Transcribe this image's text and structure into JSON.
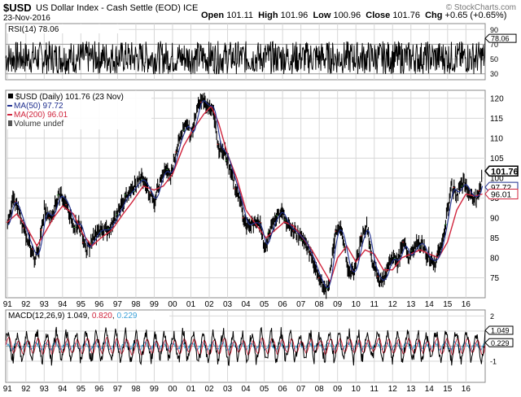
{
  "header": {
    "symbol": "$USD",
    "description": "US Dollar Index - Cash Settle (EOD) ICE",
    "date": "23-Nov-2016",
    "brand": "© StockCharts.com",
    "open_label": "Open",
    "open": "101.11",
    "high_label": "High",
    "high": "101.96",
    "low_label": "Low",
    "low": "100.96",
    "close_label": "Close",
    "close": "101.76",
    "chg_label": "Chg",
    "chg": "+0.65 (+0.65%)"
  },
  "colors": {
    "price": "#000000",
    "ma50": "#1f2f8f",
    "ma200": "#d0243c",
    "macd": "#000000",
    "signal": "#d0243c",
    "histogram": "#3aa0d8",
    "grid": "#d7d7d7",
    "border": "#888888",
    "up_arrow": "#2f8f2f",
    "down_arrow": "#cc2222"
  },
  "chart_data": [
    {
      "type": "line",
      "panel": "RSI",
      "legend": "RSI(14) 78.06",
      "last_value_label": "78.06",
      "ylim": [
        22,
        98
      ],
      "yticks": [
        {
          "value": 90,
          "label": "90"
        },
        {
          "value": 70,
          "label": "70"
        },
        {
          "value": 50,
          "label": "50"
        },
        {
          "value": 30,
          "label": "30"
        }
      ],
      "reference_lines": [
        70,
        30
      ],
      "last_value": 78.06,
      "oscillation_amplitude": 14
    },
    {
      "type": "line",
      "panel": "Price",
      "legend": {
        "title": "$USD (Daily) 101.76 (23 Nov)",
        "ma50": "MA(50) 97.72",
        "ma200": "MA(200) 96.01",
        "volume": "Volume undef"
      },
      "ylim": [
        70,
        122
      ],
      "yticks": [
        {
          "value": 120,
          "label": "120"
        },
        {
          "value": 115,
          "label": "115"
        },
        {
          "value": 110,
          "label": "110"
        },
        {
          "value": 105,
          "label": "105"
        },
        {
          "value": 100,
          "label": "100"
        },
        {
          "value": 95,
          "label": "95"
        },
        {
          "value": 90,
          "label": "90"
        },
        {
          "value": 85,
          "label": "85"
        },
        {
          "value": 80,
          "label": "80"
        },
        {
          "value": 75,
          "label": "75"
        }
      ],
      "value_tags": [
        {
          "value": 101.76,
          "label": "101.76",
          "style": "bold"
        },
        {
          "value": 97.72,
          "label": "97.72",
          "style": "ma50"
        },
        {
          "value": 96.01,
          "label": "96.01",
          "style": "ma200"
        }
      ],
      "series_price": [
        [
          1991.0,
          88
        ],
        [
          1991.3,
          95
        ],
        [
          1991.6,
          92
        ],
        [
          1992.0,
          86
        ],
        [
          1992.5,
          80
        ],
        [
          1992.7,
          82
        ],
        [
          1993.0,
          92
        ],
        [
          1993.4,
          90
        ],
        [
          1993.8,
          96
        ],
        [
          1994.2,
          94
        ],
        [
          1994.6,
          88
        ],
        [
          1994.9,
          89
        ],
        [
          1995.3,
          82
        ],
        [
          1995.6,
          84
        ],
        [
          1996.0,
          87
        ],
        [
          1996.5,
          87
        ],
        [
          1997.0,
          91
        ],
        [
          1997.4,
          95
        ],
        [
          1997.8,
          97
        ],
        [
          1998.3,
          100
        ],
        [
          1998.6,
          98
        ],
        [
          1999.0,
          94
        ],
        [
          1999.5,
          102
        ],
        [
          1999.9,
          101
        ],
        [
          2000.4,
          110
        ],
        [
          2000.8,
          114
        ],
        [
          2001.0,
          110
        ],
        [
          2001.5,
          120
        ],
        [
          2001.9,
          118
        ],
        [
          2002.2,
          118
        ],
        [
          2002.5,
          108
        ],
        [
          2002.9,
          106
        ],
        [
          2003.3,
          100
        ],
        [
          2003.7,
          94
        ],
        [
          2004.0,
          88
        ],
        [
          2004.5,
          89
        ],
        [
          2004.8,
          88
        ],
        [
          2005.0,
          82
        ],
        [
          2005.5,
          89
        ],
        [
          2005.9,
          92
        ],
        [
          2006.3,
          88
        ],
        [
          2006.8,
          86
        ],
        [
          2007.2,
          84
        ],
        [
          2007.6,
          80
        ],
        [
          2007.9,
          76
        ],
        [
          2008.3,
          72
        ],
        [
          2008.5,
          73
        ],
        [
          2008.9,
          87
        ],
        [
          2009.2,
          87
        ],
        [
          2009.6,
          77
        ],
        [
          2009.9,
          76
        ],
        [
          2010.3,
          85
        ],
        [
          2010.6,
          88
        ],
        [
          2010.9,
          79
        ],
        [
          2011.3,
          74
        ],
        [
          2011.6,
          75
        ],
        [
          2011.9,
          80
        ],
        [
          2012.3,
          79
        ],
        [
          2012.6,
          84
        ],
        [
          2012.9,
          80
        ],
        [
          2013.3,
          83
        ],
        [
          2013.6,
          84
        ],
        [
          2013.9,
          80
        ],
        [
          2014.3,
          79
        ],
        [
          2014.6,
          82
        ],
        [
          2014.9,
          89
        ],
        [
          2015.2,
          98
        ],
        [
          2015.5,
          96
        ],
        [
          2015.9,
          99
        ],
        [
          2016.2,
          96
        ],
        [
          2016.5,
          95
        ],
        [
          2016.8,
          97
        ],
        [
          2016.9,
          101.76
        ]
      ],
      "series_ma200": [
        [
          1991.0,
          89
        ],
        [
          1991.5,
          91
        ],
        [
          1992.0,
          88
        ],
        [
          1992.6,
          83
        ],
        [
          1993.0,
          86
        ],
        [
          1993.5,
          90
        ],
        [
          1994.0,
          93
        ],
        [
          1994.6,
          91
        ],
        [
          1995.1,
          86
        ],
        [
          1995.6,
          83
        ],
        [
          1996.1,
          85
        ],
        [
          1996.7,
          87
        ],
        [
          1997.3,
          91
        ],
        [
          1997.8,
          94
        ],
        [
          1998.4,
          98
        ],
        [
          1999.0,
          97
        ],
        [
          1999.5,
          98
        ],
        [
          2000.0,
          101
        ],
        [
          2000.6,
          108
        ],
        [
          2001.1,
          112
        ],
        [
          2001.7,
          116
        ],
        [
          2002.1,
          118
        ],
        [
          2002.5,
          114
        ],
        [
          2003.0,
          106
        ],
        [
          2003.5,
          100
        ],
        [
          2004.0,
          92
        ],
        [
          2004.6,
          88
        ],
        [
          2005.1,
          85
        ],
        [
          2005.6,
          87
        ],
        [
          2006.1,
          89
        ],
        [
          2006.6,
          88
        ],
        [
          2007.1,
          85
        ],
        [
          2007.6,
          82
        ],
        [
          2008.1,
          78
        ],
        [
          2008.6,
          74
        ],
        [
          2009.0,
          80
        ],
        [
          2009.5,
          83
        ],
        [
          2010.0,
          79
        ],
        [
          2010.5,
          82
        ],
        [
          2011.0,
          81
        ],
        [
          2011.5,
          77
        ],
        [
          2012.0,
          77
        ],
        [
          2012.5,
          80
        ],
        [
          2013.0,
          81
        ],
        [
          2013.5,
          82
        ],
        [
          2014.0,
          81
        ],
        [
          2014.5,
          80
        ],
        [
          2015.0,
          84
        ],
        [
          2015.5,
          92
        ],
        [
          2016.0,
          96
        ],
        [
          2016.5,
          95.5
        ],
        [
          2016.9,
          96.01
        ]
      ]
    },
    {
      "type": "line",
      "panel": "MACD",
      "legend": {
        "label": "MACD(12,26,9)",
        "macd_value": "1.049",
        "signal_value": "0.820",
        "hist_value": "0.229"
      },
      "ylim": [
        -2.4,
        2.4
      ],
      "yticks": [
        {
          "value": 2,
          "label": "2"
        },
        {
          "value": 1,
          "label": "1"
        },
        {
          "value": 0,
          "label": ""
        },
        {
          "value": -1,
          "label": "-1"
        }
      ],
      "value_tags": [
        {
          "value": 1.049,
          "label": "1.049"
        },
        {
          "value": 0.229,
          "label": "0.229"
        }
      ]
    }
  ],
  "x_axis": {
    "range": [
      1990.9,
      2017.05
    ],
    "ticks": [
      {
        "value": 1991,
        "label": "91"
      },
      {
        "value": 1992,
        "label": "92"
      },
      {
        "value": 1993,
        "label": "93"
      },
      {
        "value": 1994,
        "label": "94"
      },
      {
        "value": 1995,
        "label": "95"
      },
      {
        "value": 1996,
        "label": "96"
      },
      {
        "value": 1997,
        "label": "97"
      },
      {
        "value": 1998,
        "label": "98"
      },
      {
        "value": 1999,
        "label": "99"
      },
      {
        "value": 2000,
        "label": "00"
      },
      {
        "value": 2001,
        "label": "01"
      },
      {
        "value": 2002,
        "label": "02"
      },
      {
        "value": 2003,
        "label": "03"
      },
      {
        "value": 2004,
        "label": "04"
      },
      {
        "value": 2005,
        "label": "05"
      },
      {
        "value": 2006,
        "label": "06"
      },
      {
        "value": 2007,
        "label": "07"
      },
      {
        "value": 2008,
        "label": "08"
      },
      {
        "value": 2009,
        "label": "09"
      },
      {
        "value": 2010,
        "label": "10"
      },
      {
        "value": 2011,
        "label": "11"
      },
      {
        "value": 2012,
        "label": "12"
      },
      {
        "value": 2013,
        "label": "13"
      },
      {
        "value": 2014,
        "label": "14"
      },
      {
        "value": 2015,
        "label": "15"
      },
      {
        "value": 2016,
        "label": "16"
      }
    ]
  }
}
